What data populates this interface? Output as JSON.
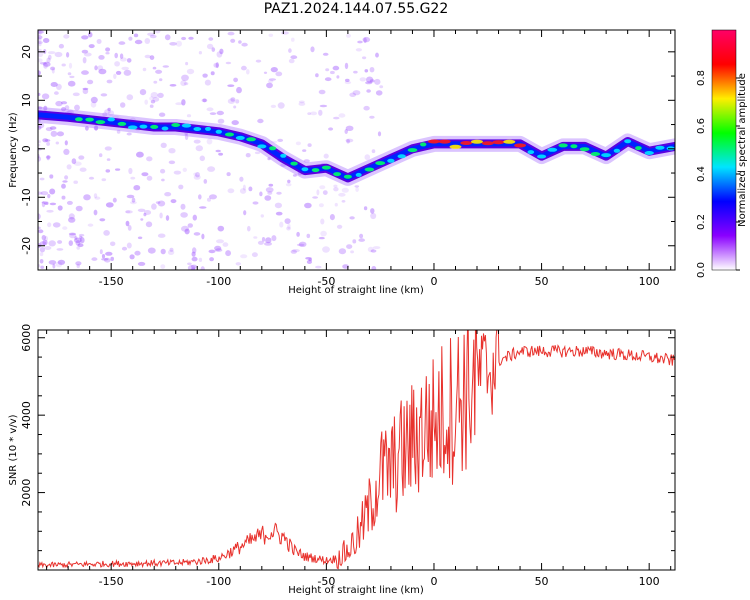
{
  "title": "PAZ1.2024.144.07.55.G22",
  "colors": {
    "snr_line": "#e8322d",
    "axis": "#000000",
    "colormap": [
      "#ffffff",
      "#8a00ff",
      "#0000ff",
      "#00e5ff",
      "#00ff00",
      "#ffee00",
      "#ff0000",
      "#ff0066"
    ]
  },
  "chart_data": [
    {
      "type": "heatmap",
      "title": "PAZ1.2024.144.07.55.G22",
      "xlabel": "Height of straight line (km)",
      "ylabel": "Frequency (Hz)",
      "xlim": [
        -184,
        112
      ],
      "ylim": [
        -25,
        24.5
      ],
      "xticks": [
        -150,
        -100,
        -50,
        0,
        50,
        100
      ],
      "yticks": [
        20,
        10,
        0,
        -10,
        -20
      ],
      "colorbar": {
        "label": "Normalized spectral amplitude",
        "range": [
          0,
          1
        ],
        "ticks": [
          "0.0",
          "0.2",
          "0.4",
          "0.6",
          "0.8"
        ]
      },
      "ridge": {
        "x": [
          -184,
          -170,
          -160,
          -150,
          -140,
          -130,
          -120,
          -110,
          -100,
          -90,
          -80,
          -70,
          -60,
          -50,
          -40,
          -30,
          -20,
          -10,
          0,
          10,
          20,
          30,
          40,
          50,
          60,
          70,
          80,
          90,
          100,
          112
        ],
        "y": [
          7,
          6.5,
          6,
          5.5,
          5,
          4.5,
          4.5,
          4,
          3.5,
          2.5,
          1,
          -2,
          -4.5,
          -4,
          -6,
          -4,
          -2,
          0,
          1,
          1,
          1,
          1,
          1,
          -1.5,
          0.5,
          0.5,
          -1.5,
          1.5,
          -0.5,
          0.5
        ]
      }
    },
    {
      "type": "line",
      "xlabel": "Height of straight line (km)",
      "ylabel": "SNR (10 * v/v)",
      "xlim": [
        -184,
        112
      ],
      "ylim": [
        0,
        6200
      ],
      "xticks": [
        -150,
        -100,
        -50,
        0,
        50,
        100
      ],
      "yticks": [
        2000,
        4000,
        6000
      ],
      "series": [
        {
          "x": [
            -184,
            -160,
            -140,
            -120,
            -110,
            -100,
            -90,
            -80,
            -75,
            -70,
            -65,
            -60,
            -50,
            -45,
            -40,
            -35,
            -30,
            -25,
            -20,
            -15,
            -10,
            -5,
            0,
            5,
            10,
            15,
            20,
            30,
            40,
            50,
            60,
            70,
            80,
            90,
            100,
            112
          ],
          "y": [
            120,
            150,
            170,
            180,
            220,
            300,
            600,
            900,
            1000,
            850,
            500,
            350,
            250,
            300,
            500,
            900,
            1600,
            2500,
            2600,
            3000,
            3300,
            3700,
            3800,
            4100,
            4300,
            4700,
            5000,
            5400,
            5650,
            5650,
            5650,
            5650,
            5600,
            5550,
            5500,
            5400
          ]
        }
      ]
    }
  ]
}
